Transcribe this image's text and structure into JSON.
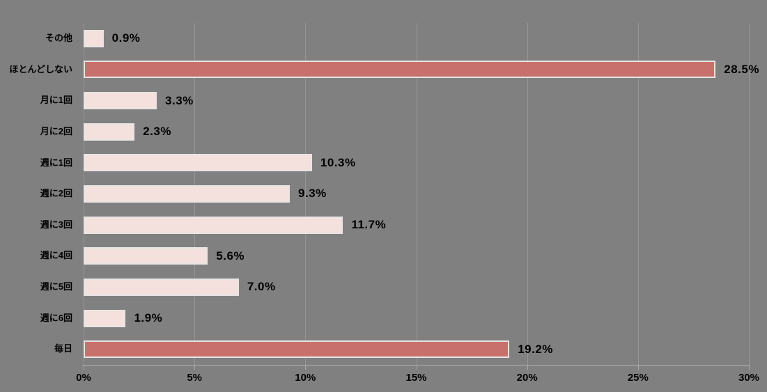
{
  "chart_data": {
    "type": "bar",
    "orientation": "horizontal",
    "title": "",
    "xlabel": "",
    "ylabel": "",
    "categories": [
      "その他",
      "ほとんどしない",
      "月に1回",
      "月に2回",
      "週に1回",
      "週に2回",
      "週に3回",
      "週に4回",
      "週に5回",
      "週に6回",
      "毎日"
    ],
    "values": [
      0.9,
      28.5,
      3.3,
      2.3,
      10.3,
      9.3,
      11.7,
      5.6,
      7.0,
      1.9,
      19.2
    ],
    "value_labels": [
      "0.9%",
      "28.5%",
      "3.3%",
      "2.3%",
      "10.3%",
      "9.3%",
      "11.7%",
      "5.6%",
      "7.0%",
      "1.9%",
      "19.2%"
    ],
    "highlighted": [
      false,
      true,
      false,
      false,
      false,
      false,
      false,
      false,
      false,
      false,
      true
    ],
    "xlim": [
      0,
      30
    ],
    "x_ticks": [
      "0%",
      "5%",
      "10%",
      "15%",
      "20%",
      "25%",
      "30%"
    ],
    "x_tick_values": [
      0,
      5,
      10,
      15,
      20,
      25,
      30
    ],
    "grid": "vertical",
    "legend": "none",
    "colors": {
      "background": "#808080",
      "bar_fill": "#F4E1DE",
      "bar_highlight": "#C7706C",
      "bar_border": "#E8E4E3",
      "gridline": "#969696",
      "axis_line": "#ABABAB",
      "text": "#000000"
    }
  }
}
